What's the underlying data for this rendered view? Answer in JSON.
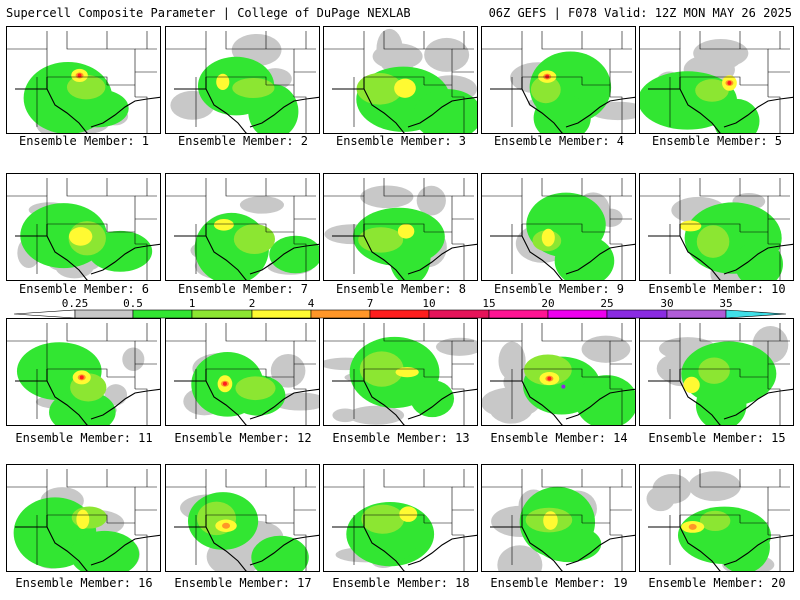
{
  "header": {
    "title_left": "Supercell Composite Parameter | College of DuPage NEXLAB",
    "title_right": "06Z GEFS | F078 Valid: 12Z MON MAY 26 2025"
  },
  "caption_prefix": "Ensemble Member:",
  "members": [
    {
      "label": "Ensemble Member: 1",
      "max_category": "7"
    },
    {
      "label": "Ensemble Member: 2",
      "max_category": "2"
    },
    {
      "label": "Ensemble Member: 3",
      "max_category": "2"
    },
    {
      "label": "Ensemble Member: 4",
      "max_category": "7"
    },
    {
      "label": "Ensemble Member: 5",
      "max_category": "10"
    },
    {
      "label": "Ensemble Member: 6",
      "max_category": "2"
    },
    {
      "label": "Ensemble Member: 7",
      "max_category": "2"
    },
    {
      "label": "Ensemble Member: 8",
      "max_category": "2"
    },
    {
      "label": "Ensemble Member: 9",
      "max_category": "2"
    },
    {
      "label": "Ensemble Member: 10",
      "max_category": "2"
    },
    {
      "label": "Ensemble Member: 11",
      "max_category": "7"
    },
    {
      "label": "Ensemble Member: 12",
      "max_category": "7"
    },
    {
      "label": "Ensemble Member: 13",
      "max_category": "2"
    },
    {
      "label": "Ensemble Member: 14",
      "max_category": "30"
    },
    {
      "label": "Ensemble Member: 15",
      "max_category": "2"
    },
    {
      "label": "Ensemble Member: 16",
      "max_category": "2"
    },
    {
      "label": "Ensemble Member: 17",
      "max_category": "4"
    },
    {
      "label": "Ensemble Member: 18",
      "max_category": "2"
    },
    {
      "label": "Ensemble Member: 19",
      "max_category": "2"
    },
    {
      "label": "Ensemble Member: 20",
      "max_category": "4"
    }
  ],
  "colorbar": {
    "labels": [
      "0.25",
      "0.5",
      "1",
      "2",
      "4",
      "7",
      "10",
      "15",
      "20",
      "25",
      "30",
      "35"
    ],
    "colors": [
      "#c8c8c8",
      "#32e632",
      "#8ce632",
      "#fffa32",
      "#ff9628",
      "#ff1e1e",
      "#e6145a",
      "#ff1493",
      "#ee00ee",
      "#8a2be2",
      "#b05cd8",
      "#40e0e8"
    ]
  },
  "map_colors": {
    "gray": "#c8c8c8",
    "green": "#32e632",
    "lime": "#8ce632",
    "yellow": "#fffa32",
    "orange": "#ff9628",
    "red": "#ff1e1e",
    "purple": "#8a2be2"
  }
}
